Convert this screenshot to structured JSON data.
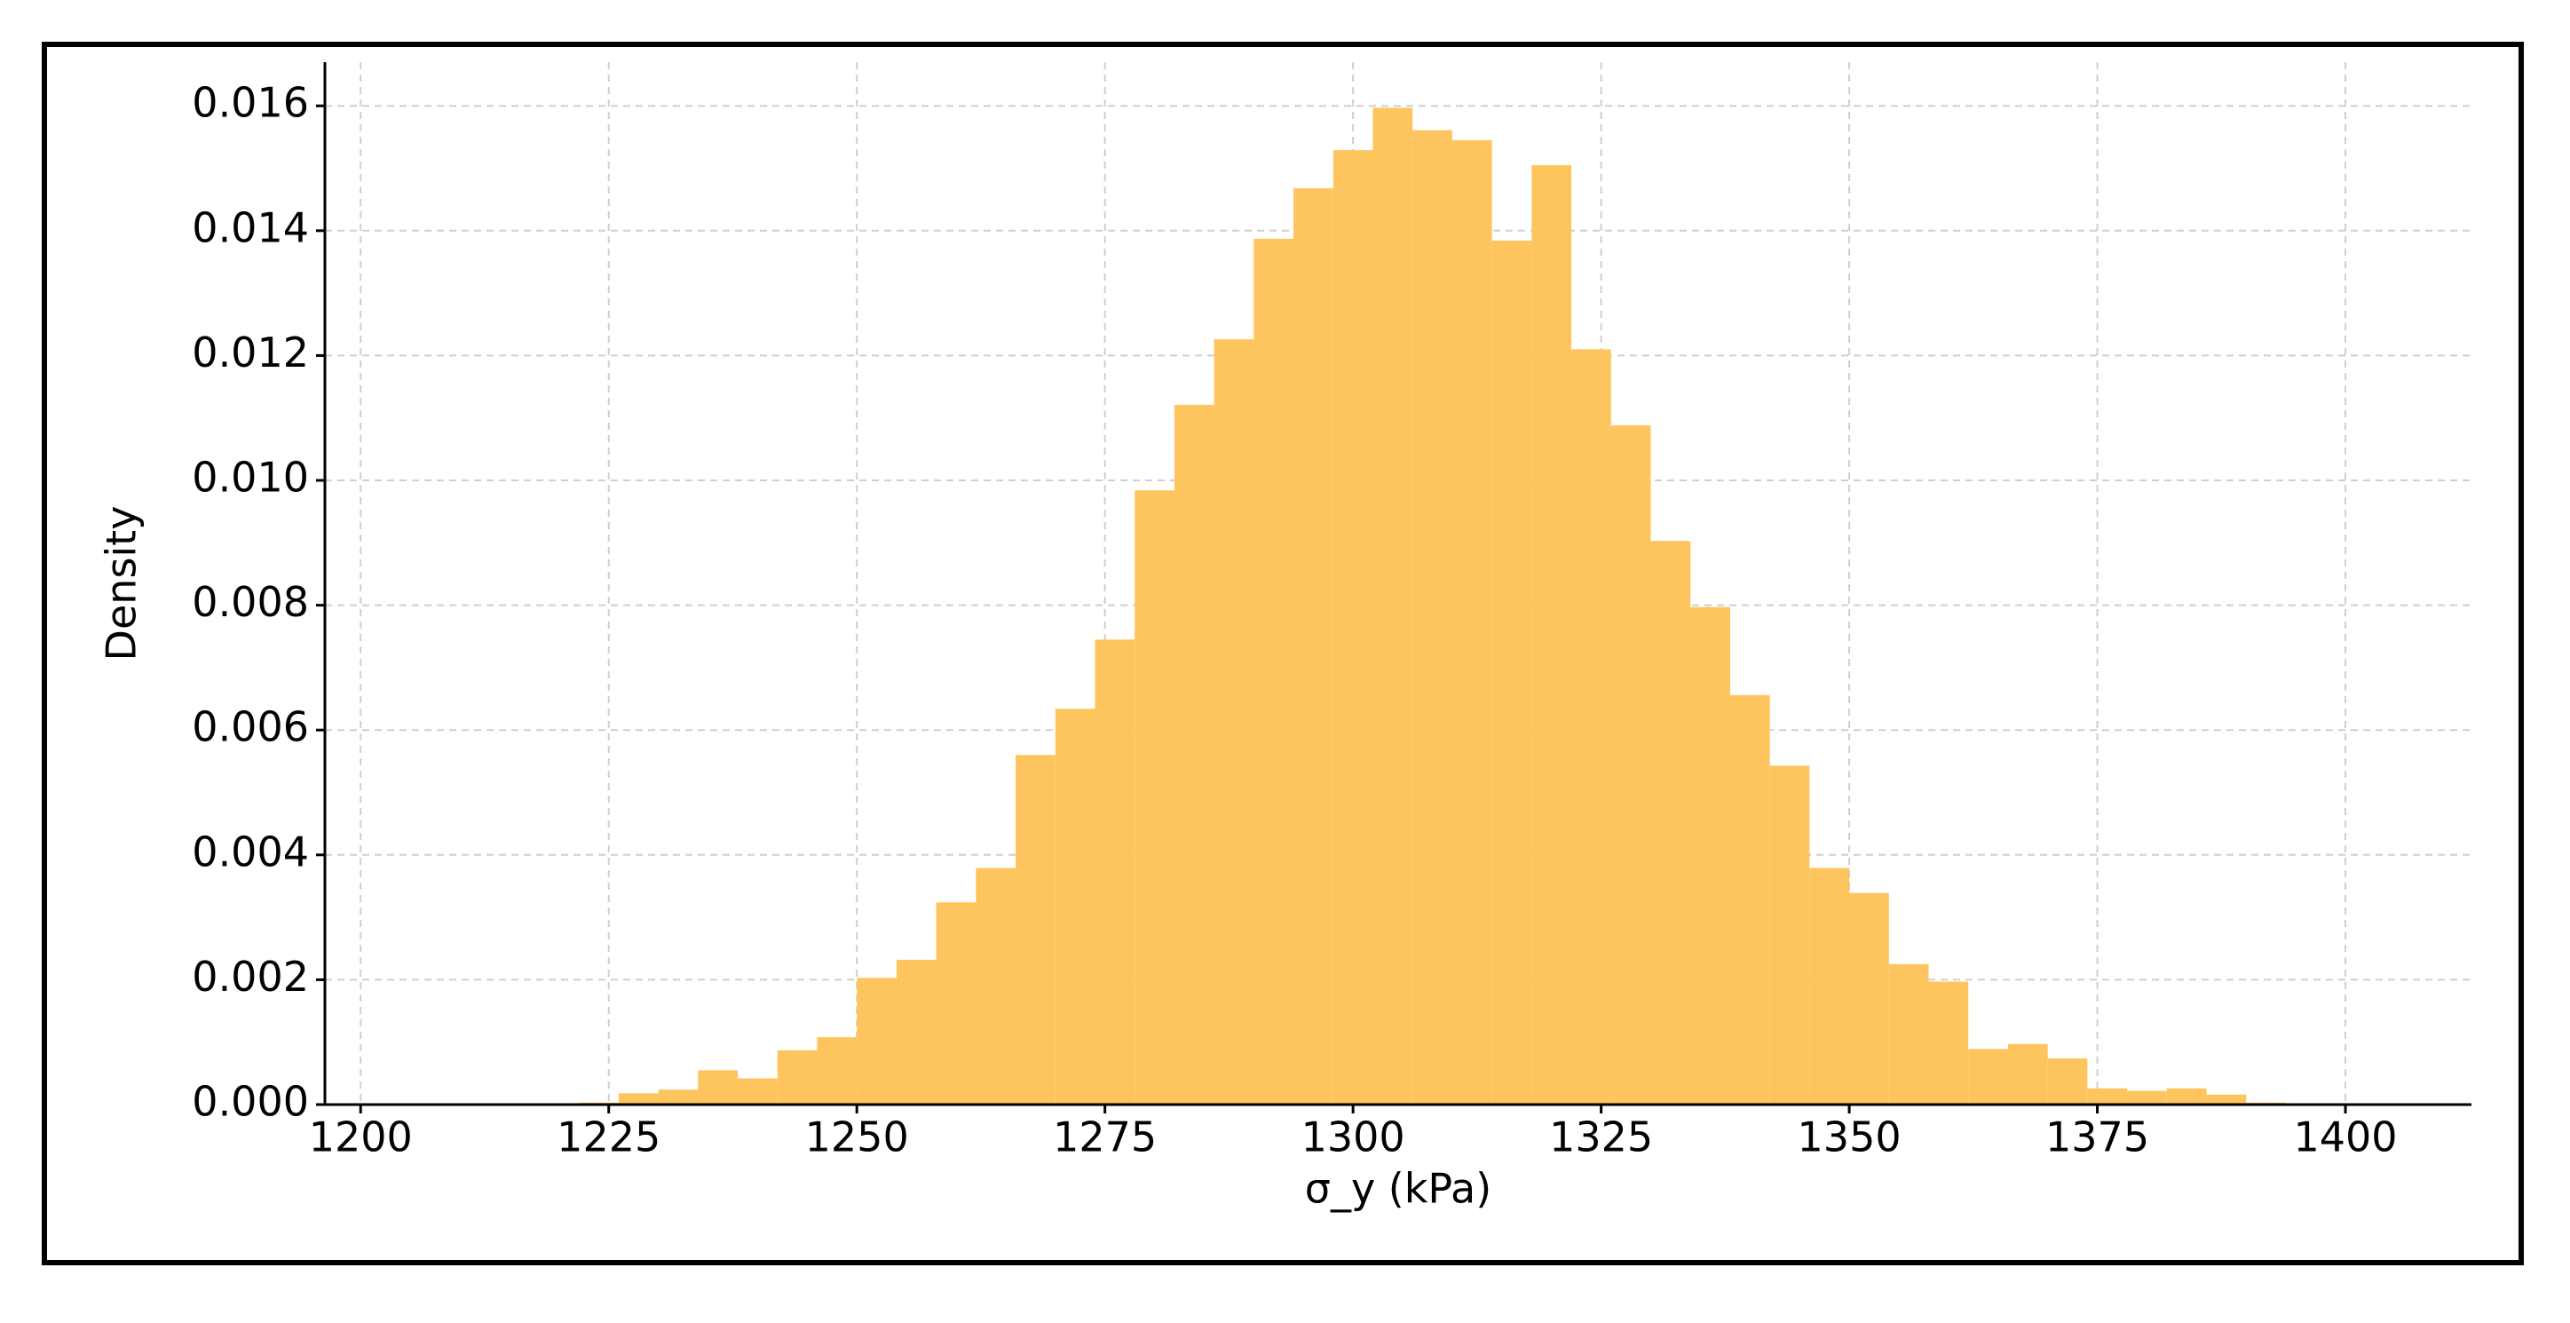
{
  "chart_data": {
    "type": "histogram",
    "xlabel": "σ_y (kPa)",
    "ylabel": "Density",
    "bins": [
      1206,
      1210,
      1214,
      1218,
      1222,
      1226,
      1230,
      1234,
      1238,
      1242,
      1246,
      1250,
      1254,
      1258,
      1262,
      1266,
      1270,
      1274,
      1278,
      1282,
      1286,
      1290,
      1294,
      1298,
      1302,
      1306,
      1310,
      1314,
      1318,
      1322,
      1326,
      1330,
      1334,
      1338,
      1342,
      1346,
      1350,
      1354,
      1358,
      1362,
      1366,
      1370,
      1374,
      1378,
      1382,
      1386,
      1390,
      1394,
      1398
    ],
    "values": [
      2e-05,
      0,
      0,
      2e-05,
      3e-05,
      0.00018,
      0.00024,
      0.00055,
      0.00042,
      0.00087,
      0.00108,
      0.00203,
      0.00232,
      0.00324,
      0.00379,
      0.0056,
      0.00634,
      0.00745,
      0.00984,
      0.01121,
      0.01226,
      0.01387,
      0.01468,
      0.01529,
      0.01597,
      0.01561,
      0.01545,
      0.01384,
      0.01505,
      0.0121,
      0.01088,
      0.00903,
      0.00797,
      0.00656,
      0.00543,
      0.00379,
      0.00339,
      0.00225,
      0.00197,
      0.00089,
      0.00097,
      0.00074,
      0.00026,
      0.00022,
      0.00026,
      0.00016,
      3e-05,
      1e-05
    ],
    "color": "#fec55f",
    "xlim": [
      1196.4,
      1412.7
    ],
    "ylim": [
      0,
      0.0167
    ],
    "xticks": [
      1200,
      1225,
      1250,
      1275,
      1300,
      1325,
      1350,
      1375,
      1400
    ],
    "yticks": [
      {
        "value": 0,
        "label": "0.000"
      },
      {
        "value": 0.002,
        "label": "0.002"
      },
      {
        "value": 0.004,
        "label": "0.004"
      },
      {
        "value": 0.006,
        "label": "0.006"
      },
      {
        "value": 0.008,
        "label": "0.008"
      },
      {
        "value": 0.01,
        "label": "0.010"
      },
      {
        "value": 0.012,
        "label": "0.012"
      },
      {
        "value": 0.014,
        "label": "0.014"
      },
      {
        "value": 0.016,
        "label": "0.016"
      }
    ],
    "grid": true
  }
}
